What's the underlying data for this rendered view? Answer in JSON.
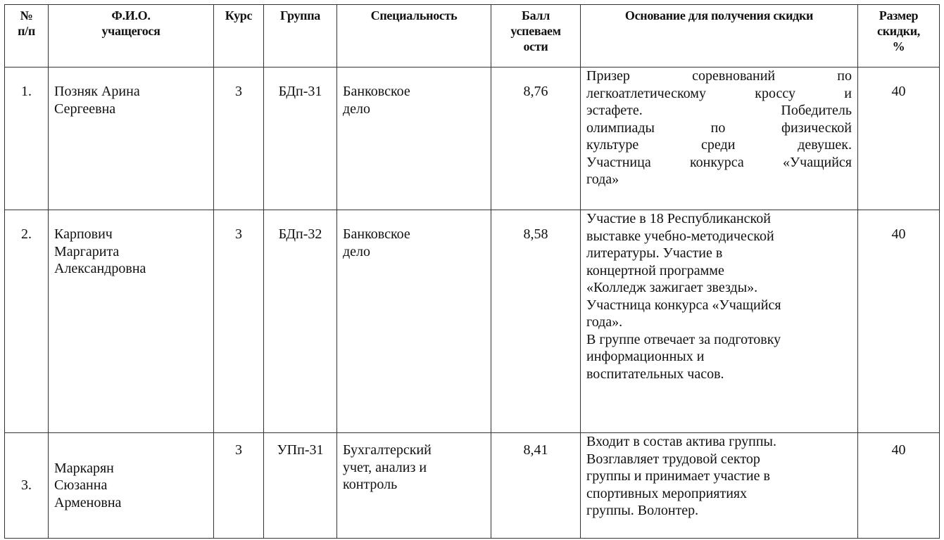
{
  "headers": [
    "№ п/п",
    "Ф.И.О. учащегося",
    "Курс",
    "Группа",
    "Специальность",
    "Балл успеваем ости",
    "Основание для получения скидки",
    "Размер скидки, %"
  ],
  "header_lines": [
    [
      "№",
      "п/п"
    ],
    [
      "Ф.И.О.",
      "учащегося"
    ],
    [
      "Курс"
    ],
    [
      "Группа"
    ],
    [
      "Специальность"
    ],
    [
      "Балл",
      "успеваем",
      "ости"
    ],
    [
      "Основание для получения скидки"
    ],
    [
      "Размер",
      "скидки,",
      "%"
    ]
  ],
  "rows": [
    {
      "num": "1.",
      "name": [
        "Позняк Арина",
        "Сергеевна"
      ],
      "course": "3",
      "group": "БДп-31",
      "specialty": [
        "Банковское",
        "дело"
      ],
      "score": "8,76",
      "reason": [
        "Призер соревнований по",
        "легкоатлетическому кроссу и",
        "эстафете. Победитель",
        "олимпиады по физической",
        "культуре среди девушек.",
        "Участница конкурса «Учащийся",
        "года»"
      ],
      "discount": "40"
    },
    {
      "num": "2.",
      "name": [
        "Карпович",
        "Маргарита",
        "Александровна"
      ],
      "course": "3",
      "group": "БДп-32",
      "specialty": [
        "Банковское",
        "дело"
      ],
      "score": "8,58",
      "reason": [
        "Участие в 18 Республиканской",
        "выставке учебно-методической",
        "литературы. Участие в",
        "концертной программе",
        "«Колледж зажигает звезды».",
        "Участница конкурса «Учащийся",
        "года».",
        "В группе отвечает за подготовку",
        "информационных и",
        "воспитательных часов."
      ],
      "discount": "40"
    },
    {
      "num": "3.",
      "name": [
        "Маркарян",
        "Сюзанна",
        "Арменовна"
      ],
      "course": "3",
      "group": "УПп-31",
      "specialty": [
        "Бухгалтерский",
        "учет, анализ и",
        "контроль"
      ],
      "score": "8,41",
      "reason": [
        "Входит в состав актива группы.",
        "Возглавляет трудовой сектор",
        "группы и принимает участие в",
        "спортивных мероприятиях",
        "группы. Волонтер."
      ],
      "discount": "40"
    }
  ]
}
